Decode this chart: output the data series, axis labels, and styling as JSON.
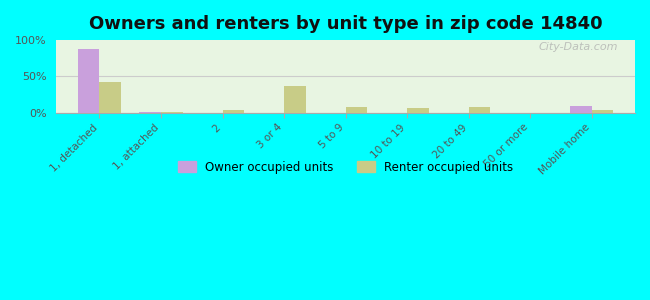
{
  "title": "Owners and renters by unit type in zip code 14840",
  "categories": [
    "1, detached",
    "1, attached",
    "2",
    "3 or 4",
    "5 to 9",
    "10 to 19",
    "20 to 49",
    "50 or more",
    "Mobile home"
  ],
  "owner_values": [
    88,
    1,
    0,
    0,
    0,
    0,
    0,
    0,
    9
  ],
  "renter_values": [
    42,
    1,
    3,
    37,
    7,
    6,
    7,
    0,
    4
  ],
  "owner_color": "#c9a0dc",
  "renter_color": "#c8cc87",
  "background_top": "#e8f5e2",
  "background_bottom": "#f5faf0",
  "outer_bg": "#00ffff",
  "ylim": [
    0,
    100
  ],
  "yticks": [
    0,
    50,
    100
  ],
  "ytick_labels": [
    "0%",
    "50%",
    "100%"
  ],
  "bar_width": 0.35,
  "legend_owner": "Owner occupied units",
  "legend_renter": "Renter occupied units",
  "watermark": "City-Data.com"
}
